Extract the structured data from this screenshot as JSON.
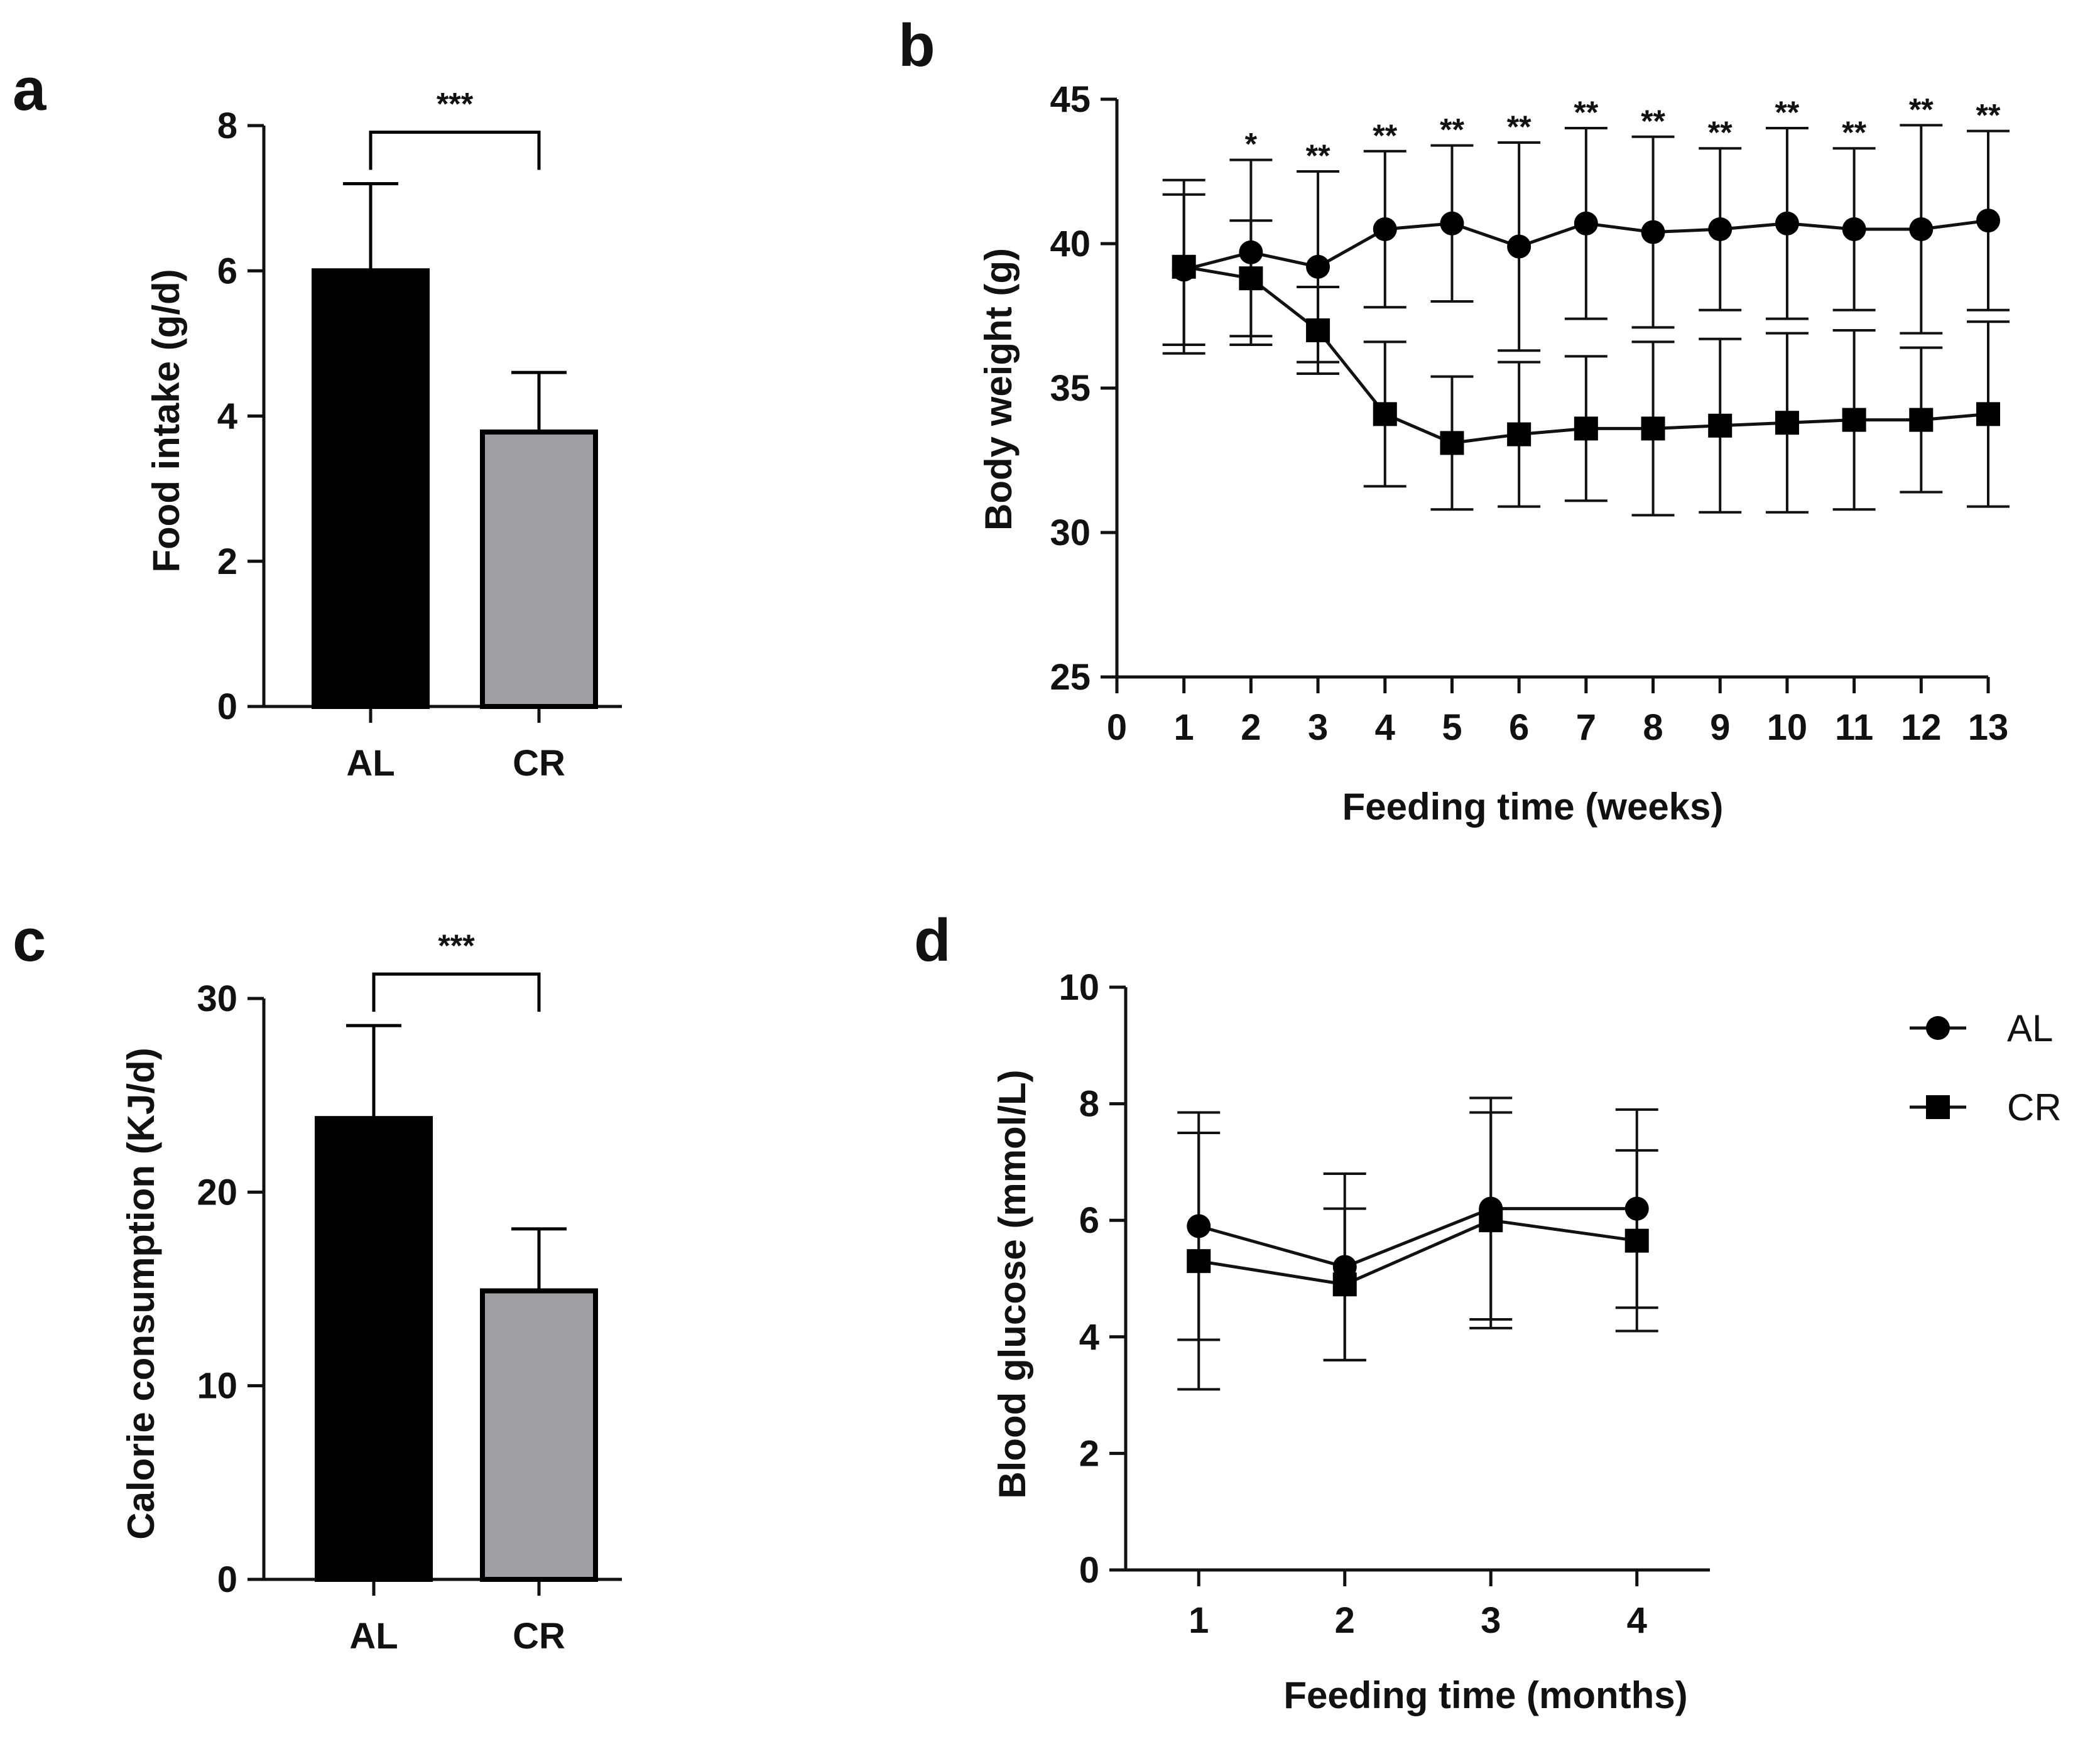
{
  "colors": {
    "AL": "#000000",
    "CR": "#a0a0a4",
    "axis": "#111111"
  },
  "chart_data": [
    {
      "panel": "a",
      "type": "bar",
      "categories": [
        "AL",
        "CR"
      ],
      "values": [
        6.0,
        3.78
      ],
      "errors": [
        1.2,
        0.82
      ],
      "ylabel": "Food intake (g/d)",
      "xlabel": "",
      "ylim": [
        0,
        8
      ],
      "yticks": [
        0,
        2,
        4,
        6,
        8
      ],
      "significance": "***",
      "grid": false
    },
    {
      "panel": "b",
      "type": "line",
      "x": [
        1,
        2,
        3,
        4,
        5,
        6,
        7,
        8,
        9,
        10,
        11,
        12,
        13
      ],
      "xticks": [
        0,
        1,
        2,
        3,
        4,
        5,
        6,
        7,
        8,
        9,
        10,
        11,
        12,
        13
      ],
      "xlim": [
        0,
        13
      ],
      "ylim": [
        25,
        45
      ],
      "yticks": [
        25,
        30,
        35,
        40,
        45
      ],
      "xlabel": "Feeding time (weeks)",
      "ylabel": "Body weight (g)",
      "series": [
        {
          "name": "AL",
          "marker": "circle",
          "values": [
            39.1,
            39.7,
            39.2,
            40.5,
            40.7,
            39.9,
            40.7,
            40.4,
            40.5,
            40.7,
            40.5,
            40.5,
            40.8
          ],
          "errors": [
            2.6,
            3.2,
            3.3,
            2.7,
            2.7,
            3.6,
            3.3,
            3.3,
            2.8,
            3.3,
            2.8,
            3.6,
            3.1
          ]
        },
        {
          "name": "CR",
          "marker": "square",
          "values": [
            39.2,
            38.8,
            37.0,
            34.1,
            33.1,
            33.4,
            33.6,
            33.6,
            33.7,
            33.8,
            33.9,
            33.9,
            34.1
          ],
          "errors": [
            3.0,
            2.0,
            1.5,
            2.5,
            2.3,
            2.5,
            2.5,
            3.0,
            3.0,
            3.1,
            3.1,
            2.5,
            3.2
          ]
        }
      ],
      "annotations": [
        "",
        "*",
        "**",
        "**",
        "**",
        "**",
        "**",
        "**",
        "**",
        "**",
        "**",
        "**",
        "**"
      ],
      "grid": false
    },
    {
      "panel": "c",
      "type": "bar",
      "categories": [
        "AL",
        "CR"
      ],
      "values": [
        23.8,
        14.9
      ],
      "errors": [
        4.8,
        3.2
      ],
      "ylabel": "Calorie consumption (KJ/d)",
      "xlabel": "",
      "ylim": [
        0,
        30
      ],
      "yticks": [
        0,
        10,
        20,
        30
      ],
      "significance": "***",
      "grid": false
    },
    {
      "panel": "d",
      "type": "line",
      "x": [
        1,
        2,
        3,
        4
      ],
      "xticks": [
        1,
        2,
        3,
        4
      ],
      "xlim": [
        0.5,
        4.5
      ],
      "ylim": [
        0,
        10
      ],
      "yticks": [
        0,
        2,
        4,
        6,
        8,
        10
      ],
      "xlabel": "Feeding time (months)",
      "ylabel": "Blood glucose (mmol/L)",
      "series": [
        {
          "name": "AL",
          "marker": "circle",
          "values": [
            5.9,
            5.2,
            6.2,
            6.2
          ],
          "errors": [
            1.95,
            1.6,
            1.9,
            1.7
          ]
        },
        {
          "name": "CR",
          "marker": "square",
          "values": [
            5.3,
            4.9,
            6.0,
            5.65
          ],
          "errors": [
            2.2,
            1.3,
            1.85,
            1.55
          ]
        }
      ],
      "legend": {
        "position": "top-right",
        "entries": [
          "AL",
          "CR"
        ]
      },
      "grid": false
    }
  ]
}
